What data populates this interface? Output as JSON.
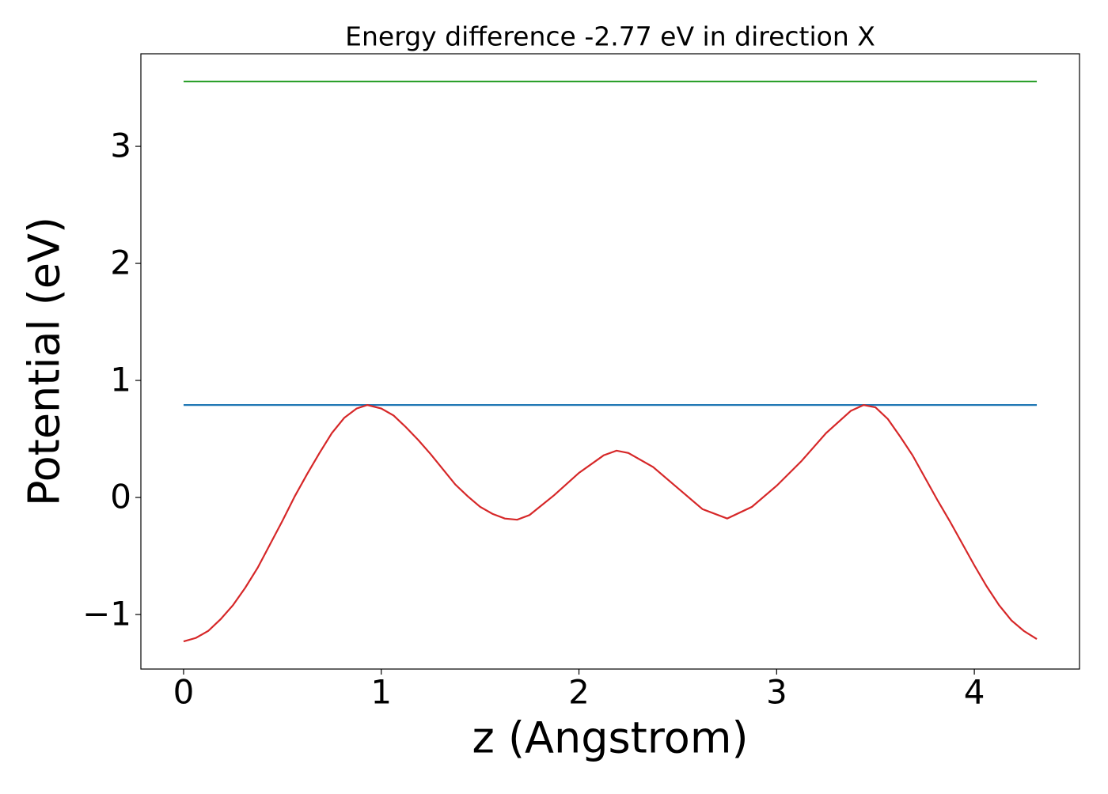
{
  "chart_data": {
    "type": "line",
    "title": "Energy difference -2.77 eV in direction X",
    "x_label": "z (Angstrom)",
    "y_label": "Potential (eV)",
    "xlim": [
      -0.216,
      4.532
    ],
    "ylim": [
      -1.466,
      3.791
    ],
    "xticks": [
      0,
      1,
      2,
      3,
      4
    ],
    "yticks": [
      {
        "value": -1,
        "label": "−1"
      },
      0,
      1,
      2,
      3
    ],
    "series": [
      {
        "color": "#2ca02c",
        "x": [
          0,
          4.316
        ],
        "values": [
          3.554,
          3.554
        ]
      },
      {
        "color": "#1f77b4",
        "x": [
          0,
          4.316
        ],
        "values": [
          0.79,
          0.79
        ]
      },
      {
        "color": "#d62728",
        "x": [
          0,
          0.0625,
          0.125,
          0.1875,
          0.25,
          0.3125,
          0.375,
          0.4375,
          0.5,
          0.5625,
          0.625,
          0.6875,
          0.75,
          0.8125,
          0.875,
          0.93,
          1.0,
          1.0625,
          1.125,
          1.1875,
          1.25,
          1.3125,
          1.375,
          1.4375,
          1.5,
          1.5625,
          1.625,
          1.6875,
          1.75,
          1.875,
          2.0,
          2.125,
          2.19,
          2.25,
          2.375,
          2.5,
          2.625,
          2.75,
          2.875,
          3.0,
          3.125,
          3.25,
          3.375,
          3.44,
          3.5,
          3.5625,
          3.625,
          3.6875,
          3.75,
          3.8125,
          3.875,
          3.9375,
          4.0,
          4.0625,
          4.125,
          4.1875,
          4.25,
          4.316
        ],
        "values": [
          -1.23,
          -1.2,
          -1.14,
          -1.04,
          -0.92,
          -0.77,
          -0.6,
          -0.4,
          -0.2,
          0.01,
          0.2,
          0.38,
          0.55,
          0.68,
          0.76,
          0.79,
          0.76,
          0.7,
          0.6,
          0.49,
          0.37,
          0.24,
          0.11,
          0.01,
          -0.08,
          -0.14,
          -0.18,
          -0.19,
          -0.15,
          0.02,
          0.21,
          0.36,
          0.4,
          0.38,
          0.26,
          0.08,
          -0.1,
          -0.18,
          -0.08,
          0.1,
          0.31,
          0.55,
          0.74,
          0.79,
          0.77,
          0.67,
          0.52,
          0.36,
          0.17,
          -0.02,
          -0.2,
          -0.39,
          -0.58,
          -0.76,
          -0.92,
          -1.05,
          -1.14,
          -1.21
        ]
      }
    ]
  }
}
